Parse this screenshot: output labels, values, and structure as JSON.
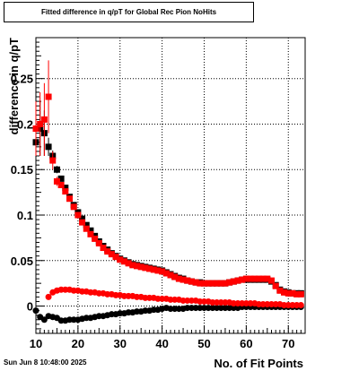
{
  "title": "Fitted difference in q/pT for Global Rec Pion NoHits",
  "footer": {
    "timestamp": "Sun Jun  8 10:48:00 2025"
  },
  "chart_data": {
    "type": "scatter",
    "title": "Fitted difference in q/pT for Global Rec Pion NoHits",
    "xlabel": "No. of Fit Points",
    "ylabel": "difference in q/pT",
    "xlim": [
      10,
      74
    ],
    "ylim": [
      -0.03,
      0.295
    ],
    "x_ticks": [
      10,
      20,
      30,
      40,
      50,
      60,
      70
    ],
    "y_ticks": [
      0,
      0.05,
      0.1,
      0.15,
      0.2,
      0.25
    ],
    "y_tick_labels": [
      "0",
      "0.05",
      "0.1",
      "0.15",
      "0.2",
      "0.25"
    ],
    "grid": true,
    "series": [
      {
        "color": "#000000",
        "marker": "square",
        "x": [
          10,
          11,
          12,
          13,
          14,
          15,
          16,
          17,
          18,
          19,
          20,
          21,
          22,
          23,
          24,
          25,
          26,
          27,
          28,
          29,
          30,
          31,
          32,
          33,
          34,
          35,
          36,
          37,
          38,
          39,
          40,
          41,
          42,
          43,
          44,
          45,
          46,
          47,
          48,
          49,
          50,
          51,
          52,
          53,
          54,
          55,
          56,
          57,
          58,
          59,
          60,
          61,
          62,
          63,
          64,
          65,
          66,
          67,
          68,
          69,
          70,
          71,
          72,
          73
        ],
        "y": [
          0.18,
          0.195,
          0.19,
          0.175,
          0.165,
          0.15,
          0.14,
          0.13,
          0.12,
          0.111,
          0.103,
          0.096,
          0.089,
          0.083,
          0.077,
          0.071,
          0.066,
          0.062,
          0.058,
          0.055,
          0.052,
          0.05,
          0.048,
          0.046,
          0.045,
          0.044,
          0.043,
          0.042,
          0.041,
          0.04,
          0.039,
          0.037,
          0.035,
          0.033,
          0.031,
          0.03,
          0.028,
          0.027,
          0.026,
          0.026,
          0.025,
          0.025,
          0.025,
          0.025,
          0.025,
          0.025,
          0.026,
          0.027,
          0.028,
          0.029,
          0.029,
          0.029,
          0.029,
          0.029,
          0.029,
          0.029,
          0.027,
          0.023,
          0.018,
          0.016,
          0.015,
          0.014,
          0.014,
          0.014
        ],
        "yerr": [
          0.02,
          0.03,
          0.025,
          0.01,
          0.006,
          0.004,
          0.003,
          0.002,
          0.002,
          0.002,
          0.002,
          0.002,
          0.002,
          0.001,
          0.001,
          0.001,
          0.001,
          0.001,
          0.001,
          0.001,
          0.001,
          0.001,
          0.001,
          0.001,
          0.001,
          0.001,
          0.001,
          0.001,
          0.001,
          0.001,
          0.001,
          0.001,
          0.001,
          0.001,
          0.001,
          0.001,
          0.001,
          0.001,
          0.001,
          0.001,
          0.001,
          0.001,
          0.001,
          0.001,
          0.001,
          0.001,
          0.001,
          0.001,
          0.001,
          0.001,
          0.001,
          0.001,
          0.001,
          0.001,
          0.001,
          0.001,
          0.001,
          0.001,
          0.001,
          0.001,
          0.001,
          0.001,
          0.001,
          0.001
        ]
      },
      {
        "color": "#ff0000",
        "marker": "square",
        "x": [
          10,
          11,
          12,
          13,
          14,
          15,
          16,
          17,
          18,
          19,
          20,
          21,
          22,
          23,
          24,
          25,
          26,
          27,
          28,
          29,
          30,
          31,
          32,
          33,
          34,
          35,
          36,
          37,
          38,
          39,
          40,
          41,
          42,
          43,
          44,
          45,
          46,
          47,
          48,
          49,
          50,
          51,
          52,
          53,
          54,
          55,
          56,
          57,
          58,
          59,
          60,
          61,
          62,
          63,
          64,
          65,
          66,
          67,
          68,
          69,
          70,
          71,
          72,
          73
        ],
        "y": [
          0.195,
          0.2,
          0.205,
          0.23,
          0.16,
          0.137,
          0.133,
          0.126,
          0.118,
          0.109,
          0.1,
          0.092,
          0.085,
          0.079,
          0.074,
          0.069,
          0.064,
          0.06,
          0.057,
          0.054,
          0.051,
          0.049,
          0.047,
          0.045,
          0.044,
          0.043,
          0.042,
          0.041,
          0.04,
          0.039,
          0.038,
          0.036,
          0.034,
          0.032,
          0.03,
          0.029,
          0.028,
          0.027,
          0.026,
          0.025,
          0.025,
          0.025,
          0.025,
          0.025,
          0.025,
          0.025,
          0.026,
          0.027,
          0.028,
          0.029,
          0.03,
          0.03,
          0.03,
          0.03,
          0.03,
          0.03,
          0.028,
          0.022,
          0.017,
          0.015,
          0.014,
          0.014,
          0.013,
          0.013
        ],
        "yerr": [
          0.03,
          0.035,
          0.04,
          0.04,
          0.01,
          0.005,
          0.003,
          0.002,
          0.002,
          0.002,
          0.002,
          0.002,
          0.002,
          0.001,
          0.001,
          0.001,
          0.001,
          0.001,
          0.001,
          0.001,
          0.001,
          0.001,
          0.001,
          0.001,
          0.001,
          0.001,
          0.001,
          0.001,
          0.001,
          0.001,
          0.001,
          0.001,
          0.001,
          0.001,
          0.001,
          0.001,
          0.001,
          0.001,
          0.001,
          0.001,
          0.001,
          0.001,
          0.001,
          0.001,
          0.001,
          0.001,
          0.001,
          0.001,
          0.001,
          0.001,
          0.001,
          0.001,
          0.001,
          0.001,
          0.001,
          0.001,
          0.001,
          0.001,
          0.001,
          0.001,
          0.001,
          0.001,
          0.001,
          0.001
        ]
      },
      {
        "color": "#000000",
        "marker": "circle",
        "x": [
          10,
          11,
          12,
          13,
          14,
          15,
          16,
          17,
          18,
          19,
          20,
          21,
          22,
          23,
          24,
          25,
          26,
          27,
          28,
          29,
          30,
          31,
          32,
          33,
          34,
          35,
          36,
          37,
          38,
          39,
          40,
          41,
          42,
          43,
          44,
          45,
          46,
          47,
          48,
          49,
          50,
          51,
          52,
          53,
          54,
          55,
          56,
          57,
          58,
          59,
          60,
          61,
          62,
          63,
          64,
          65,
          66,
          67,
          68,
          69,
          70,
          71,
          72,
          73
        ],
        "y": [
          -0.005,
          -0.012,
          -0.015,
          -0.011,
          -0.012,
          -0.013,
          -0.016,
          -0.016,
          -0.015,
          -0.015,
          -0.015,
          -0.014,
          -0.013,
          -0.013,
          -0.012,
          -0.011,
          -0.011,
          -0.01,
          -0.009,
          -0.009,
          -0.008,
          -0.008,
          -0.007,
          -0.007,
          -0.006,
          -0.006,
          -0.005,
          -0.005,
          -0.004,
          -0.004,
          -0.003,
          -0.002,
          -0.003,
          -0.003,
          -0.003,
          -0.003,
          -0.002,
          -0.002,
          -0.002,
          -0.002,
          -0.002,
          -0.002,
          -0.002,
          -0.002,
          -0.002,
          -0.002,
          -0.002,
          -0.002,
          -0.002,
          -0.001,
          -0.001,
          -0.001,
          -0.001,
          -0.001,
          -0.001,
          -0.001,
          -0.001,
          -0.001,
          -0.001,
          -0.001,
          -0.001,
          -0.001,
          -0.001,
          -0.001
        ]
      },
      {
        "color": "#ff0000",
        "marker": "circle",
        "x": [
          13,
          14,
          15,
          16,
          17,
          18,
          19,
          20,
          21,
          22,
          23,
          24,
          25,
          26,
          27,
          28,
          29,
          30,
          31,
          32,
          33,
          34,
          35,
          36,
          37,
          38,
          39,
          40,
          41,
          42,
          43,
          44,
          45,
          46,
          47,
          48,
          49,
          50,
          51,
          52,
          53,
          54,
          55,
          56,
          57,
          58,
          59,
          60,
          61,
          62,
          63,
          64,
          65,
          66,
          67,
          68,
          69,
          70,
          71,
          72,
          73
        ],
        "y": [
          0.01,
          0.015,
          0.017,
          0.018,
          0.018,
          0.018,
          0.017,
          0.017,
          0.016,
          0.016,
          0.015,
          0.015,
          0.014,
          0.014,
          0.013,
          0.013,
          0.012,
          0.012,
          0.011,
          0.011,
          0.011,
          0.01,
          0.01,
          0.009,
          0.009,
          0.009,
          0.008,
          0.008,
          0.008,
          0.007,
          0.007,
          0.007,
          0.006,
          0.006,
          0.006,
          0.006,
          0.005,
          0.005,
          0.005,
          0.004,
          0.004,
          0.004,
          0.004,
          0.004,
          0.003,
          0.003,
          0.003,
          0.003,
          0.003,
          0.003,
          0.002,
          0.002,
          0.002,
          0.002,
          0.002,
          0.002,
          0.001,
          0.001,
          0.001,
          0.001,
          0.001
        ]
      }
    ]
  }
}
